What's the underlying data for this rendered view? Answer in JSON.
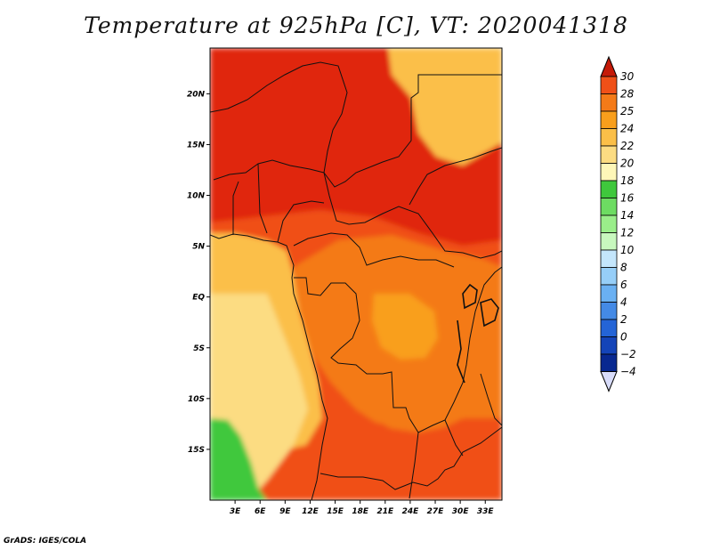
{
  "title": "Temperature at 925hPa [C], VT: 2020041318",
  "credit": "GrADS: IGES/COLA",
  "chart_data": {
    "type": "heatmap",
    "title": "Temperature at 925hPa [C], VT: 2020041318",
    "variable": "Temperature at 925hPa",
    "units": "C",
    "valid_time": "2020041318",
    "x_axis": {
      "range": [
        0,
        35
      ],
      "ticks": [
        {
          "value": 3,
          "label": "3E"
        },
        {
          "value": 6,
          "label": "6E"
        },
        {
          "value": 9,
          "label": "9E"
        },
        {
          "value": 12,
          "label": "12E"
        },
        {
          "value": 15,
          "label": "15E"
        },
        {
          "value": 18,
          "label": "18E"
        },
        {
          "value": 21,
          "label": "21E"
        },
        {
          "value": 24,
          "label": "24E"
        },
        {
          "value": 27,
          "label": "27E"
        },
        {
          "value": 30,
          "label": "30E"
        },
        {
          "value": 33,
          "label": "33E"
        }
      ]
    },
    "y_axis": {
      "range": [
        -20,
        24.5
      ],
      "ticks": [
        {
          "value": 20,
          "label": "20N"
        },
        {
          "value": 15,
          "label": "15N"
        },
        {
          "value": 10,
          "label": "10N"
        },
        {
          "value": 5,
          "label": "5N"
        },
        {
          "value": 0,
          "label": "EQ"
        },
        {
          "value": -5,
          "label": "5S"
        },
        {
          "value": -10,
          "label": "10S"
        },
        {
          "value": -15,
          "label": "15S"
        }
      ]
    },
    "colorbar": {
      "levels": [
        {
          "value": 30,
          "label": "30",
          "color": "#e02810"
        },
        {
          "value": 28,
          "label": "28",
          "color": "#f05018"
        },
        {
          "value": 25,
          "label": "25",
          "color": "#f47a18"
        },
        {
          "value": 24,
          "label": "24",
          "color": "#f99f1c"
        },
        {
          "value": 22,
          "label": "22",
          "color": "#fbbf48"
        },
        {
          "value": 20,
          "label": "20",
          "color": "#fcdc82"
        },
        {
          "value": 18,
          "label": "18",
          "color": "#fef7b8"
        },
        {
          "value": 16,
          "label": "16",
          "color": "#3fc83c"
        },
        {
          "value": 14,
          "label": "14",
          "color": "#6ddc62"
        },
        {
          "value": 12,
          "label": "12",
          "color": "#9aee8a"
        },
        {
          "value": 10,
          "label": "10",
          "color": "#c8f8be"
        },
        {
          "value": 8,
          "label": "8",
          "color": "#c4e6fc"
        },
        {
          "value": 6,
          "label": "6",
          "color": "#96cef8"
        },
        {
          "value": 4,
          "label": "4",
          "color": "#6ab0f2"
        },
        {
          "value": 2,
          "label": "2",
          "color": "#448ae6"
        },
        {
          "value": 0,
          "label": "0",
          "color": "#2464d6"
        },
        {
          "value": -2,
          "label": "−2",
          "color": "#1444b8"
        },
        {
          "value": -4,
          "label": "−4",
          "color": "#082890"
        }
      ],
      "top_triangle_color": "#c51a08",
      "bottom_triangle_color": "#d8dcfa",
      "bottom_color": "#050a5a"
    },
    "regions": [
      {
        "name": "sahel-north-band",
        "level": 30
      },
      {
        "name": "northeast-corner-cooler",
        "level": 22
      },
      {
        "name": "central-africa-band",
        "level": 28
      },
      {
        "name": "congo-basin",
        "level": 25
      },
      {
        "name": "congo-interior-cooler",
        "level": 24
      },
      {
        "name": "south-interior-hot",
        "level": 28
      },
      {
        "name": "gulf-of-guinea-ocean",
        "level": 22
      },
      {
        "name": "south-atlantic-ocean",
        "level": 20
      },
      {
        "name": "southwest-cold-ocean",
        "level": 16
      }
    ]
  }
}
